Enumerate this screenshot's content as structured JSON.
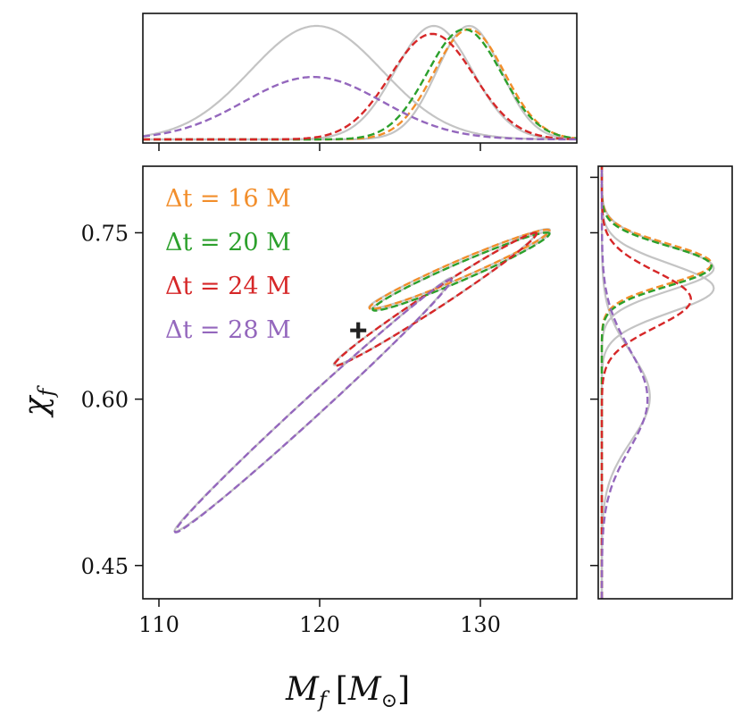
{
  "chart_data": {
    "type": "corner",
    "xlabel": "M_f [M_⊙]",
    "ylabel": "χ_f",
    "xlabel_display": "M",
    "xlabel_sub": "f",
    "xlabel_unit_open": "[",
    "xlabel_unit": "M",
    "xlabel_unit_sub": "⊙",
    "xlabel_unit_close": "]",
    "ylabel_display": "χ",
    "ylabel_sub": "f",
    "xlim": [
      109,
      136
    ],
    "ylim": [
      0.42,
      0.81
    ],
    "x_ticks": [
      110,
      120,
      130
    ],
    "x_tick_labels": [
      "110",
      "120",
      "130"
    ],
    "y_ticks": [
      0.45,
      0.6,
      0.75
    ],
    "y_tick_labels": [
      "0.45",
      "0.60",
      "0.75"
    ],
    "colors": {
      "dt16": "#f28e2b",
      "dt20": "#2ca02c",
      "dt24": "#d62728",
      "dt28": "#9467bd",
      "reference": "#c4c4c4",
      "marker": "#222222"
    },
    "series": [
      {
        "name": "dt16",
        "label": "Δt = 16 M",
        "mf_mean": 129.3,
        "mf_sd": 2.2,
        "chi_mean": 0.722,
        "chi_sd": 0.018,
        "contour": {
          "cx": 128.7,
          "cy": 0.717,
          "a": 5.6,
          "b": 0.0085,
          "slope": 0.0062
        }
      },
      {
        "name": "dt20",
        "label": "Δt = 20 M",
        "mf_mean": 129.0,
        "mf_sd": 2.3,
        "chi_mean": 0.72,
        "chi_sd": 0.018,
        "contour": {
          "cx": 128.8,
          "cy": 0.715,
          "a": 5.5,
          "b": 0.0085,
          "slope": 0.0062
        }
      },
      {
        "name": "dt24",
        "label": "Δt = 24 M",
        "mf_mean": 127.0,
        "mf_sd": 2.6,
        "chi_mean": 0.69,
        "chi_sd": 0.025,
        "contour": {
          "cx": 127.2,
          "cy": 0.69,
          "a": 6.3,
          "b": 0.0095,
          "slope": 0.0094
        }
      },
      {
        "name": "dt28",
        "label": "Δt = 28 M",
        "mf_mean": 119.6,
        "mf_sd": 4.3,
        "chi_mean": 0.6,
        "chi_sd": 0.045,
        "contour": {
          "cx": 119.6,
          "cy": 0.594,
          "a": 8.6,
          "b": 0.012,
          "slope": 0.0132
        }
      }
    ],
    "reference": [
      {
        "name": "ref-a",
        "mf_mean": 129.3,
        "mf_sd": 2.0,
        "chi_mean": 0.718,
        "chi_sd": 0.02
      },
      {
        "name": "ref-b",
        "mf_mean": 127.1,
        "mf_sd": 2.4,
        "chi_mean": 0.7,
        "chi_sd": 0.022
      },
      {
        "name": "ref-c",
        "mf_mean": 119.8,
        "mf_sd": 4.1,
        "chi_mean": 0.602,
        "chi_sd": 0.04
      }
    ],
    "marker": {
      "label": "+",
      "x": 122.4,
      "y": 0.662
    }
  }
}
